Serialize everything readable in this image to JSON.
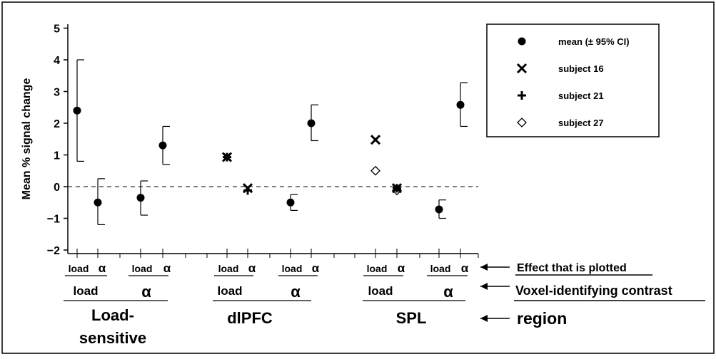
{
  "chart_data": {
    "type": "scatter",
    "ylabel": "Mean % signal change",
    "ylim": [
      -2,
      5
    ],
    "yticks": [
      5,
      4,
      3,
      2,
      1,
      0,
      -1,
      -2
    ],
    "ytick_labels": [
      "5",
      "4",
      "3",
      "2",
      "1",
      "0",
      "−1",
      "−2"
    ],
    "grid": false,
    "reference_line": 0,
    "legend_position": "top-right",
    "legend": [
      {
        "label": "mean (± 95% CI)",
        "marker": "filled-circle"
      },
      {
        "label": "subject 16",
        "marker": "x"
      },
      {
        "label": "subject 21",
        "marker": "plus"
      },
      {
        "label": "subject 27",
        "marker": "open-diamond"
      }
    ],
    "categories": [
      "load",
      "α",
      "load",
      "α",
      "load",
      "α",
      "load",
      "α",
      "load",
      "α",
      "load",
      "α"
    ],
    "series": [
      {
        "name": "mean (± 95% CI)",
        "marker": "filled-circle",
        "points": [
          {
            "index": 0,
            "y": 2.4,
            "lo": 0.8,
            "hi": 4.0
          },
          {
            "index": 1,
            "y": -0.5,
            "lo": -1.2,
            "hi": 0.25
          },
          {
            "index": 2,
            "y": -0.35,
            "lo": -0.9,
            "hi": 0.18
          },
          {
            "index": 3,
            "y": 1.3,
            "lo": 0.7,
            "hi": 1.9
          },
          {
            "index": 6,
            "y": -0.5,
            "lo": -0.75,
            "hi": -0.25
          },
          {
            "index": 7,
            "y": 2.0,
            "lo": 1.45,
            "hi": 2.58
          },
          {
            "index": 10,
            "y": -0.72,
            "lo": -1.0,
            "hi": -0.42
          },
          {
            "index": 11,
            "y": 2.58,
            "lo": 1.9,
            "hi": 3.28
          }
        ]
      },
      {
        "name": "subject 16",
        "marker": "x",
        "points": [
          {
            "index": 4,
            "y": 0.93
          },
          {
            "index": 5,
            "y": -0.05
          },
          {
            "index": 8,
            "y": 1.48
          },
          {
            "index": 9,
            "y": -0.05
          }
        ]
      },
      {
        "name": "subject 21",
        "marker": "plus",
        "points": [
          {
            "index": 4,
            "y": 0.93
          },
          {
            "index": 5,
            "y": -0.12
          },
          {
            "index": 9,
            "y": -0.05
          }
        ]
      },
      {
        "name": "subject 27",
        "marker": "open-diamond",
        "points": [
          {
            "index": 8,
            "y": 0.5
          },
          {
            "index": 9,
            "y": -0.12
          }
        ]
      }
    ],
    "contrast_labels": [
      "load",
      "α",
      "load",
      "α",
      "load",
      "α"
    ],
    "region_labels": [
      "Load-",
      "sensitive",
      "dlPFC",
      "SPL"
    ],
    "annotations": [
      "Effect that is plotted",
      "Voxel-identifying contrast",
      "region"
    ]
  }
}
